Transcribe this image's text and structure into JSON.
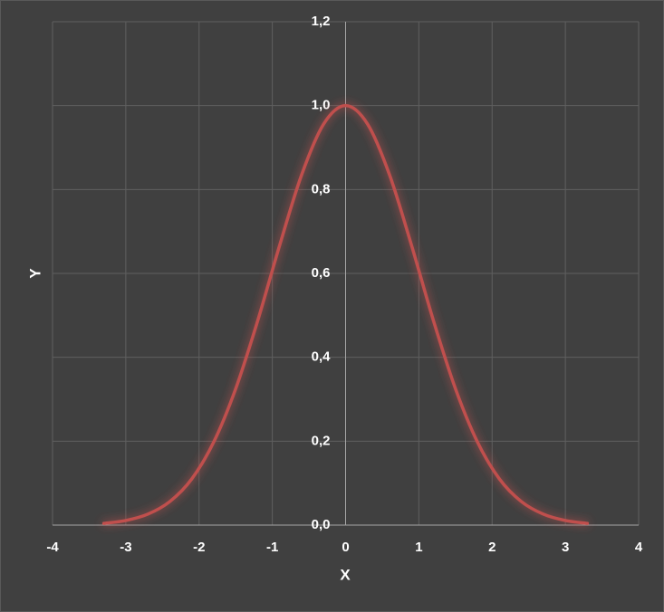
{
  "chart_data": {
    "type": "line",
    "x_label": "X",
    "y_label": "Y",
    "series": [
      {
        "color": "#c0504d",
        "x": [
          -3.3,
          -3.0,
          -2.7,
          -2.4,
          -2.1,
          -1.8,
          -1.5,
          -1.2,
          -0.9,
          -0.6,
          -0.3,
          0,
          0.3,
          0.6,
          0.9,
          1.2,
          1.5,
          1.8,
          2.1,
          2.4,
          2.7,
          3.0,
          3.3
        ],
        "values": [
          0.004,
          0.011,
          0.026,
          0.056,
          0.11,
          0.198,
          0.325,
          0.487,
          0.667,
          0.835,
          0.956,
          1,
          0.956,
          0.835,
          0.667,
          0.487,
          0.325,
          0.198,
          0.11,
          0.056,
          0.026,
          0.011,
          0.004
        ]
      }
    ],
    "xlim": [
      -4,
      4
    ],
    "xticks": [
      -4,
      -3,
      -2,
      -1,
      0,
      1,
      2,
      3,
      4
    ],
    "ylim": [
      0,
      1.2
    ],
    "yticks": [
      {
        "value": 0,
        "label": "0,0"
      },
      {
        "value": 0.2,
        "label": "0,2"
      },
      {
        "value": 0.4,
        "label": "0,4"
      },
      {
        "value": 0.6,
        "label": "0,6"
      },
      {
        "value": 0.8,
        "label": "0,8"
      },
      {
        "value": 1.0,
        "label": "1,0"
      },
      {
        "value": 1.2,
        "label": "1,2"
      }
    ],
    "grid": true
  }
}
